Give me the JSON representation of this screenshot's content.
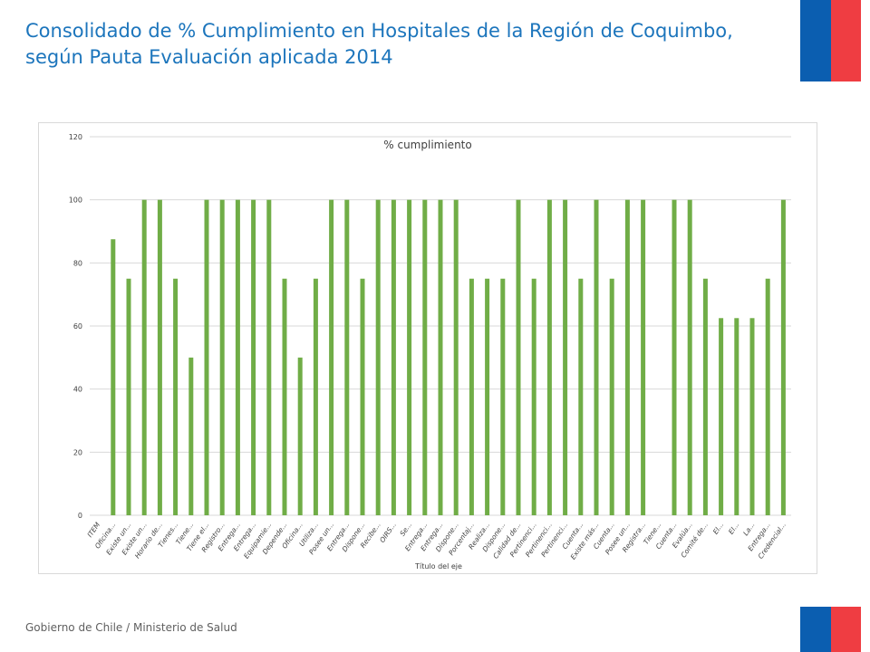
{
  "slide": {
    "title": "Consolidado de % Cumplimiento en Hospitales de la Región de Coquimbo, según Pauta Evaluación aplicada 2014",
    "footer": "Gobierno de Chile / Ministerio de Salud"
  },
  "colors": {
    "title": "#1c75bc",
    "bar": "#70ad47",
    "flag_blue": "#0b5eb0",
    "flag_red": "#ef3d42"
  },
  "chart_data": {
    "type": "bar",
    "title": "% cumplimiento",
    "xlabel": "Título del eje",
    "ylabel": "",
    "ylim": [
      0,
      120
    ],
    "yticks": [
      0,
      20,
      40,
      60,
      80,
      100,
      120
    ],
    "grid": true,
    "categories": [
      "ITEM",
      "Oficina...",
      "Existe un...",
      "Existe un...",
      "Horario de...",
      "Tienes...",
      "Tiene...",
      "Tiene el...",
      "Registro...",
      "Entrega...",
      "Entrega...",
      "Equipamie...",
      "Depende...",
      "Oficina...",
      "Utiliza...",
      "Posee un...",
      "Entrega...",
      "Dispone...",
      "Recibe...",
      "OIRS...",
      "Se...",
      "Entrega...",
      "Entrega...",
      "Dispone...",
      "Porcentaj...",
      "Realiza...",
      "Dispone...",
      "Calidad de...",
      "Pertinenci...",
      "Pertinenci...",
      "Pertinenci...",
      "Cuenta...",
      "Existe más...",
      "Cuenta...",
      "Posee un...",
      "Registra...",
      "Tiene...",
      "Cuenta...",
      "Evalúa...",
      "Comité de...",
      "El...",
      "El...",
      "La...",
      "Entrega...",
      "Credencial..."
    ],
    "values": [
      0,
      87.5,
      75,
      100,
      100,
      75,
      50,
      100,
      100,
      100,
      100,
      100,
      75,
      50,
      75,
      100,
      100,
      75,
      100,
      100,
      100,
      100,
      100,
      100,
      75,
      75,
      75,
      100,
      75,
      100,
      100,
      75,
      100,
      75,
      100,
      100,
      0,
      100,
      100,
      75,
      62.5,
      62.5,
      62.5,
      75,
      100
    ]
  }
}
